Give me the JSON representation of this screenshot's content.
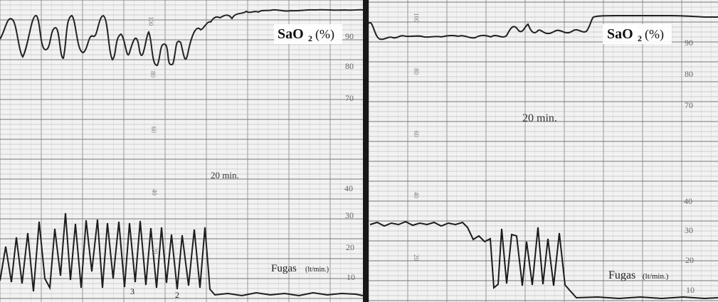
{
  "panels": [
    {
      "spo2_label": "SaO",
      "spo2_sub": "2",
      "spo2_unit": "(%)",
      "time_label": "20 min.",
      "leak_label": "Fugas",
      "leak_unit": "(lt/min.)",
      "right_scale": [
        "90",
        "80",
        "70",
        "40",
        "30",
        "20",
        "10"
      ],
      "paper_scale": [
        "100",
        "80",
        "60",
        "40",
        "20"
      ],
      "bottom_digits": [
        "3",
        "2"
      ]
    },
    {
      "spo2_label": "SaO",
      "spo2_sub": "2",
      "spo2_unit": "(%)",
      "time_label": "20 min.",
      "leak_label": "Fugas",
      "leak_unit": "(lt/min.)",
      "right_scale": [
        "90",
        "80",
        "70",
        "40",
        "30",
        "20",
        "10"
      ],
      "paper_scale": [
        "100",
        "80",
        "60",
        "40",
        "20"
      ]
    }
  ]
}
